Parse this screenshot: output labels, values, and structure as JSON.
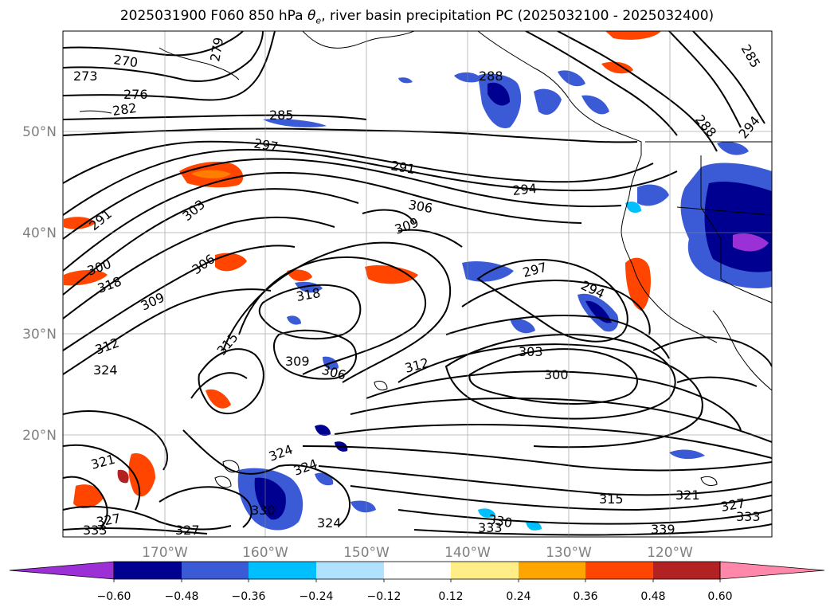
{
  "title": {
    "text_pre": "2025031900 F060 850 hPa ",
    "theta": "θ",
    "sub": "e",
    "text_post": ", river basin precipitation PC (2025032100 - 2025032400)"
  },
  "map": {
    "lon_labels": [
      "170°W",
      "160°W",
      "150°W",
      "140°W",
      "130°W",
      "120°W"
    ],
    "lat_labels": [
      "50°N",
      "40°N",
      "30°N",
      "20°N"
    ]
  },
  "contour_labels": [
    {
      "text": "270"
    },
    {
      "text": "273"
    },
    {
      "text": "276"
    },
    {
      "text": "279"
    },
    {
      "text": "282"
    },
    {
      "text": "285"
    },
    {
      "text": "288"
    },
    {
      "text": "288"
    },
    {
      "text": "294"
    },
    {
      "text": "285"
    },
    {
      "text": "297"
    },
    {
      "text": "291"
    },
    {
      "text": "294"
    },
    {
      "text": "291"
    },
    {
      "text": "303"
    },
    {
      "text": "306"
    },
    {
      "text": "309"
    },
    {
      "text": "300"
    },
    {
      "text": "318"
    },
    {
      "text": "306"
    },
    {
      "text": "309"
    },
    {
      "text": "318"
    },
    {
      "text": "297"
    },
    {
      "text": "294"
    },
    {
      "text": "315"
    },
    {
      "text": "312"
    },
    {
      "text": "324"
    },
    {
      "text": "309"
    },
    {
      "text": "306"
    },
    {
      "text": "312"
    },
    {
      "text": "303"
    },
    {
      "text": "300"
    },
    {
      "text": "321"
    },
    {
      "text": "324"
    },
    {
      "text": "324"
    },
    {
      "text": "330"
    },
    {
      "text": "327"
    },
    {
      "text": "333"
    },
    {
      "text": "327"
    },
    {
      "text": "324"
    },
    {
      "text": "330"
    },
    {
      "text": "333"
    },
    {
      "text": "315"
    },
    {
      "text": "321"
    },
    {
      "text": "327"
    },
    {
      "text": "333"
    },
    {
      "text": "339"
    }
  ],
  "colorbar": {
    "colors": [
      "#9b30d6",
      "#000090",
      "#3b5bd6",
      "#00bfff",
      "#b0e2ff",
      "#ffffff",
      "#ffee88",
      "#ffa500",
      "#ff4500",
      "#b22222",
      "#ff88aa"
    ],
    "tick_labels": [
      "−0.60",
      "−0.48",
      "−0.36",
      "−0.24",
      "−0.12",
      "0.12",
      "0.24",
      "0.36",
      "0.48",
      "0.60"
    ]
  }
}
